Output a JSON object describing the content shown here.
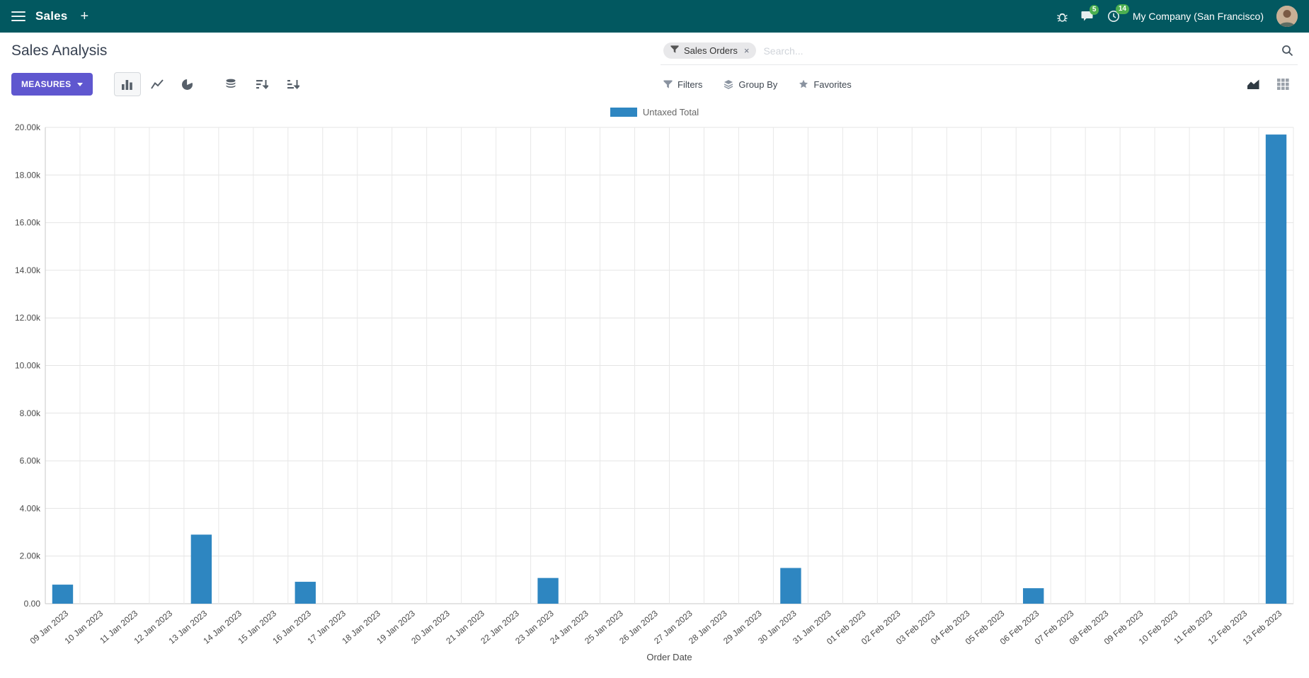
{
  "theme": {
    "navbar_bg": "#025860",
    "primary_button": "#5f57cf",
    "badge_green": "#4caf50"
  },
  "navbar": {
    "app_name": "Sales",
    "plus_label": "+",
    "messages_badge": "5",
    "activities_badge": "14",
    "company": "My Company (San Francisco)"
  },
  "control_panel": {
    "title": "Sales Analysis",
    "measures_label": "MEASURES",
    "search": {
      "facet_label": "Sales Orders",
      "facet_remove": "×",
      "placeholder": "Search..."
    },
    "actions": {
      "filters": "Filters",
      "group_by": "Group By",
      "favorites": "Favorites"
    }
  },
  "chart_data": {
    "type": "bar",
    "title": "",
    "legend": "Untaxed Total",
    "xlabel": "Order Date",
    "ylabel": "",
    "ylim": [
      0,
      20000
    ],
    "grid": true,
    "legend_position": "top-center",
    "bar_color": "#2E86C1",
    "ytick_labels": [
      "0.00",
      "2.00k",
      "4.00k",
      "6.00k",
      "8.00k",
      "10.00k",
      "12.00k",
      "14.00k",
      "16.00k",
      "18.00k",
      "20.00k"
    ],
    "categories": [
      "09 Jan 2023",
      "10 Jan 2023",
      "11 Jan 2023",
      "12 Jan 2023",
      "13 Jan 2023",
      "14 Jan 2023",
      "15 Jan 2023",
      "16 Jan 2023",
      "17 Jan 2023",
      "18 Jan 2023",
      "19 Jan 2023",
      "20 Jan 2023",
      "21 Jan 2023",
      "22 Jan 2023",
      "23 Jan 2023",
      "24 Jan 2023",
      "25 Jan 2023",
      "26 Jan 2023",
      "27 Jan 2023",
      "28 Jan 2023",
      "29 Jan 2023",
      "30 Jan 2023",
      "31 Jan 2023",
      "01 Feb 2023",
      "02 Feb 2023",
      "03 Feb 2023",
      "04 Feb 2023",
      "05 Feb 2023",
      "06 Feb 2023",
      "07 Feb 2023",
      "08 Feb 2023",
      "09 Feb 2023",
      "10 Feb 2023",
      "11 Feb 2023",
      "12 Feb 2023",
      "13 Feb 2023"
    ],
    "values": [
      800,
      0,
      0,
      0,
      2900,
      0,
      0,
      920,
      0,
      0,
      0,
      0,
      0,
      0,
      1080,
      0,
      0,
      0,
      0,
      0,
      0,
      1500,
      0,
      0,
      0,
      0,
      0,
      0,
      650,
      0,
      0,
      0,
      0,
      0,
      0,
      19700
    ]
  }
}
